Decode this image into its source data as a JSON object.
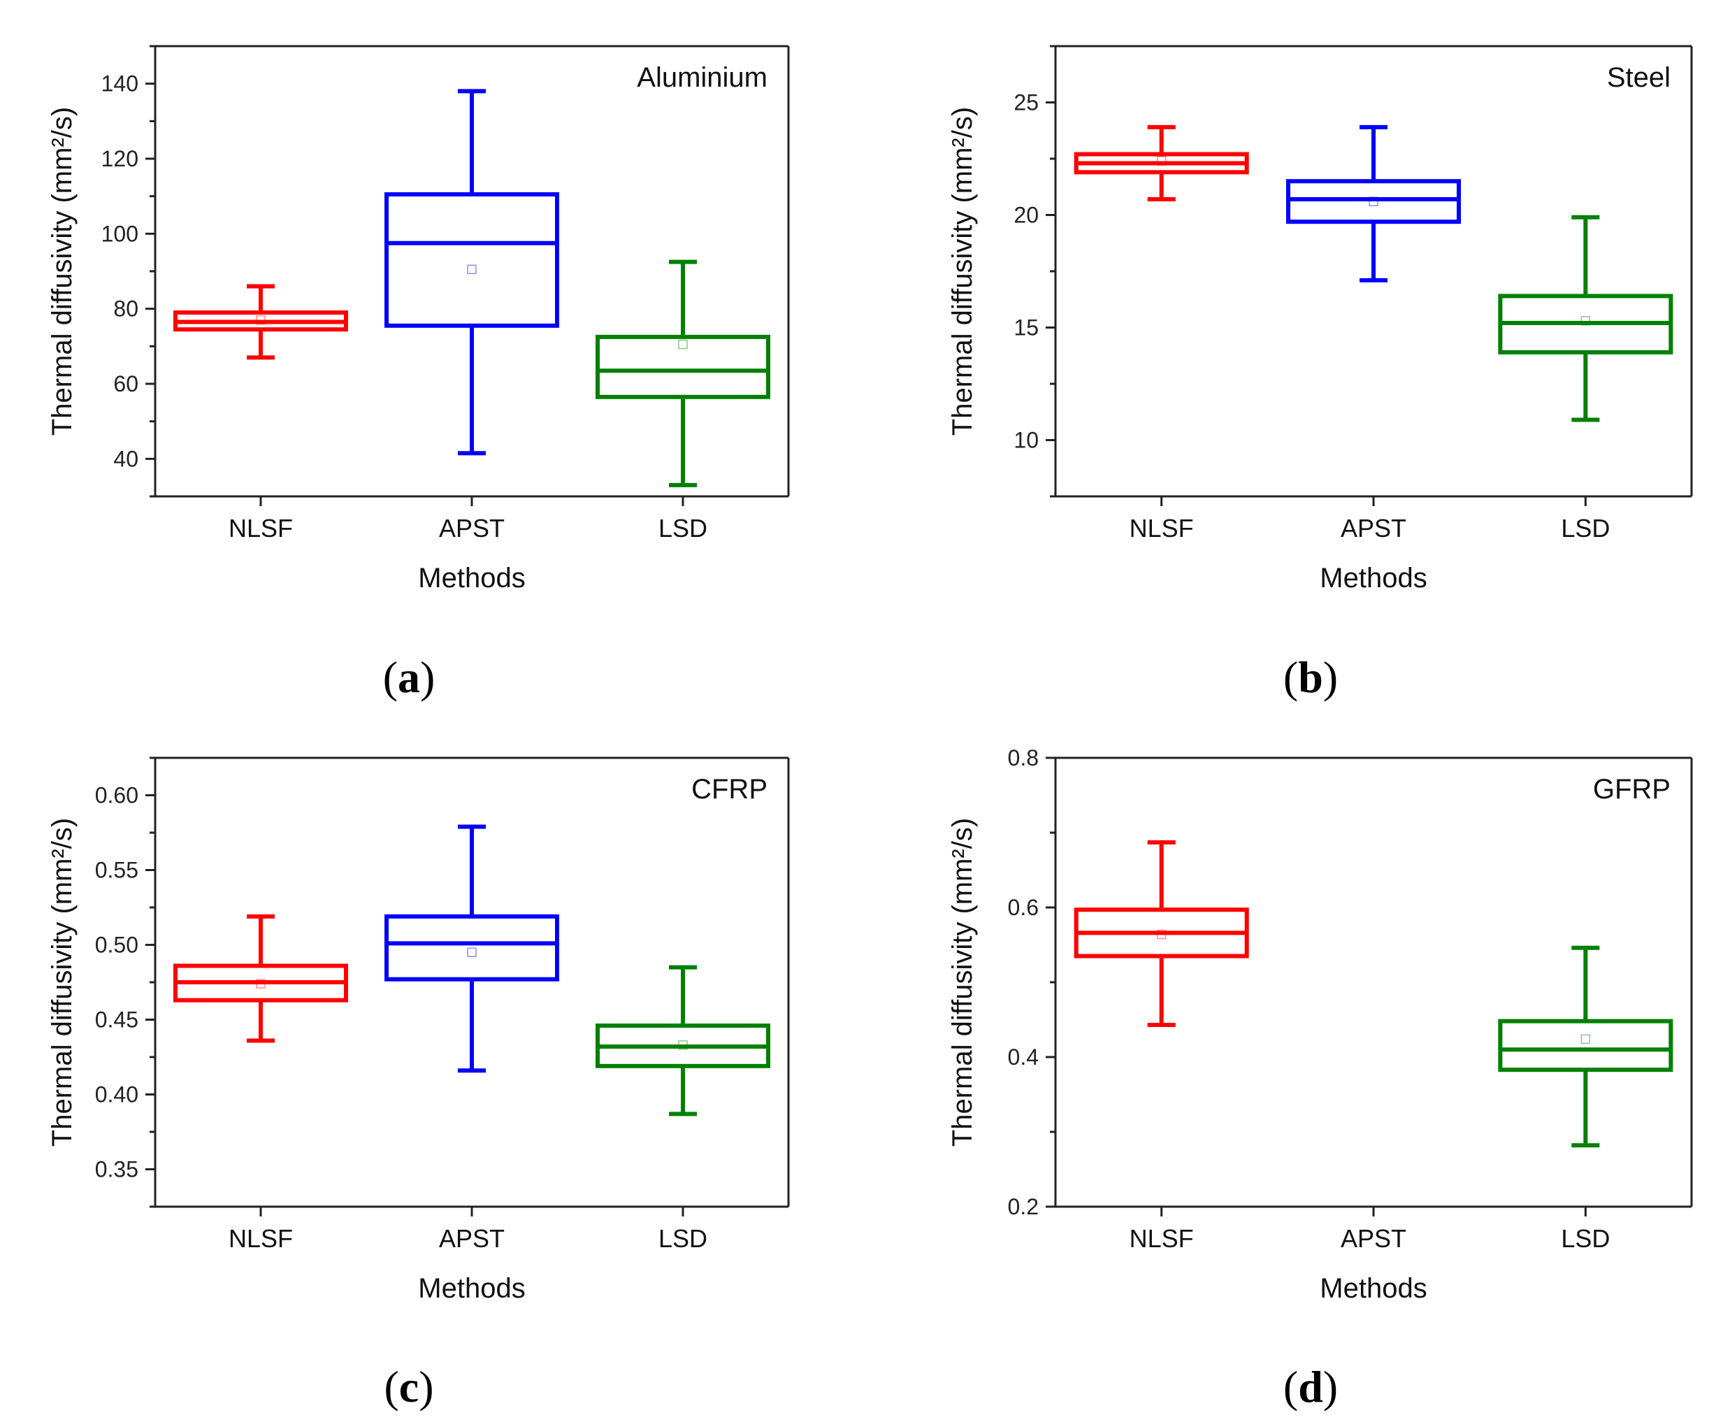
{
  "chart_data": [
    {
      "type": "box",
      "caption": "a",
      "title": "Aluminium",
      "xlabel": "Methods",
      "ylabel": "Thermal diffusivity (mm²/s)",
      "ylim": [
        30,
        150
      ],
      "yticks": [
        40,
        60,
        80,
        100,
        120,
        140
      ],
      "ytick_labels": [
        "40",
        "60",
        "80",
        "100",
        "120",
        "140"
      ],
      "categories": [
        "NLSF",
        "APST",
        "LSD"
      ],
      "colors": [
        "#ff0000",
        "#0000ff",
        "#008000"
      ],
      "boxes": [
        {
          "min": 67,
          "q1": 74.5,
          "median": 76.5,
          "q3": 79,
          "max": 86,
          "mean": 77
        },
        {
          "min": 41.5,
          "q1": 75.5,
          "median": 97.5,
          "q3": 110.5,
          "max": 138,
          "mean": 90.5
        },
        {
          "min": 33,
          "q1": 56.5,
          "median": 63.5,
          "q3": 72.5,
          "max": 92.5,
          "mean": 70.5
        }
      ]
    },
    {
      "type": "box",
      "caption": "b",
      "title": "Steel",
      "xlabel": "Methods",
      "ylabel": "Thermal diffusivity (mm²/s)",
      "ylim": [
        7.5,
        27.5
      ],
      "yticks": [
        10,
        15,
        20,
        25
      ],
      "ytick_labels": [
        "10",
        "15",
        "20",
        "25"
      ],
      "categories": [
        "NLSF",
        "APST",
        "LSD"
      ],
      "colors": [
        "#ff0000",
        "#0000ff",
        "#008000"
      ],
      "boxes": [
        {
          "min": 20.7,
          "q1": 21.9,
          "median": 22.3,
          "q3": 22.7,
          "max": 23.9,
          "mean": 22.4
        },
        {
          "min": 17.1,
          "q1": 19.7,
          "median": 20.7,
          "q3": 21.5,
          "max": 23.9,
          "mean": 20.6
        },
        {
          "min": 10.9,
          "q1": 13.9,
          "median": 15.2,
          "q3": 16.4,
          "max": 19.9,
          "mean": 15.3
        }
      ]
    },
    {
      "type": "box",
      "caption": "c",
      "title": "CFRP",
      "xlabel": "Methods",
      "ylabel": "Thermal diffusivity (mm²/s)",
      "ylim": [
        0.325,
        0.625
      ],
      "yticks": [
        0.35,
        0.4,
        0.45,
        0.5,
        0.55,
        0.6
      ],
      "ytick_labels": [
        "0.35",
        "0.40",
        "0.45",
        "0.50",
        "0.55",
        "0.60"
      ],
      "categories": [
        "NLSF",
        "APST",
        "LSD"
      ],
      "colors": [
        "#ff0000",
        "#0000ff",
        "#008000"
      ],
      "boxes": [
        {
          "min": 0.436,
          "q1": 0.463,
          "median": 0.475,
          "q3": 0.486,
          "max": 0.519,
          "mean": 0.474
        },
        {
          "min": 0.416,
          "q1": 0.477,
          "median": 0.501,
          "q3": 0.519,
          "max": 0.579,
          "mean": 0.495
        },
        {
          "min": 0.387,
          "q1": 0.419,
          "median": 0.432,
          "q3": 0.446,
          "max": 0.485,
          "mean": 0.433
        }
      ]
    },
    {
      "type": "box",
      "caption": "d",
      "title": "GFRP",
      "xlabel": "Methods",
      "ylabel": "Thermal diffusivity (mm²/s)",
      "ylim": [
        0.2,
        0.8
      ],
      "yticks": [
        0.2,
        0.4,
        0.6,
        0.8
      ],
      "ytick_labels": [
        "0.2",
        "0.4",
        "0.6",
        "0.8"
      ],
      "categories": [
        "NLSF",
        "APST",
        "LSD"
      ],
      "colors": [
        "#ff0000",
        "#0000ff",
        "#008000"
      ],
      "boxes": [
        {
          "min": 0.443,
          "q1": 0.535,
          "median": 0.566,
          "q3": 0.597,
          "max": 0.687,
          "mean": 0.564
        },
        null,
        {
          "min": 0.282,
          "q1": 0.383,
          "median": 0.41,
          "q3": 0.448,
          "max": 0.546,
          "mean": 0.424
        }
      ]
    }
  ]
}
